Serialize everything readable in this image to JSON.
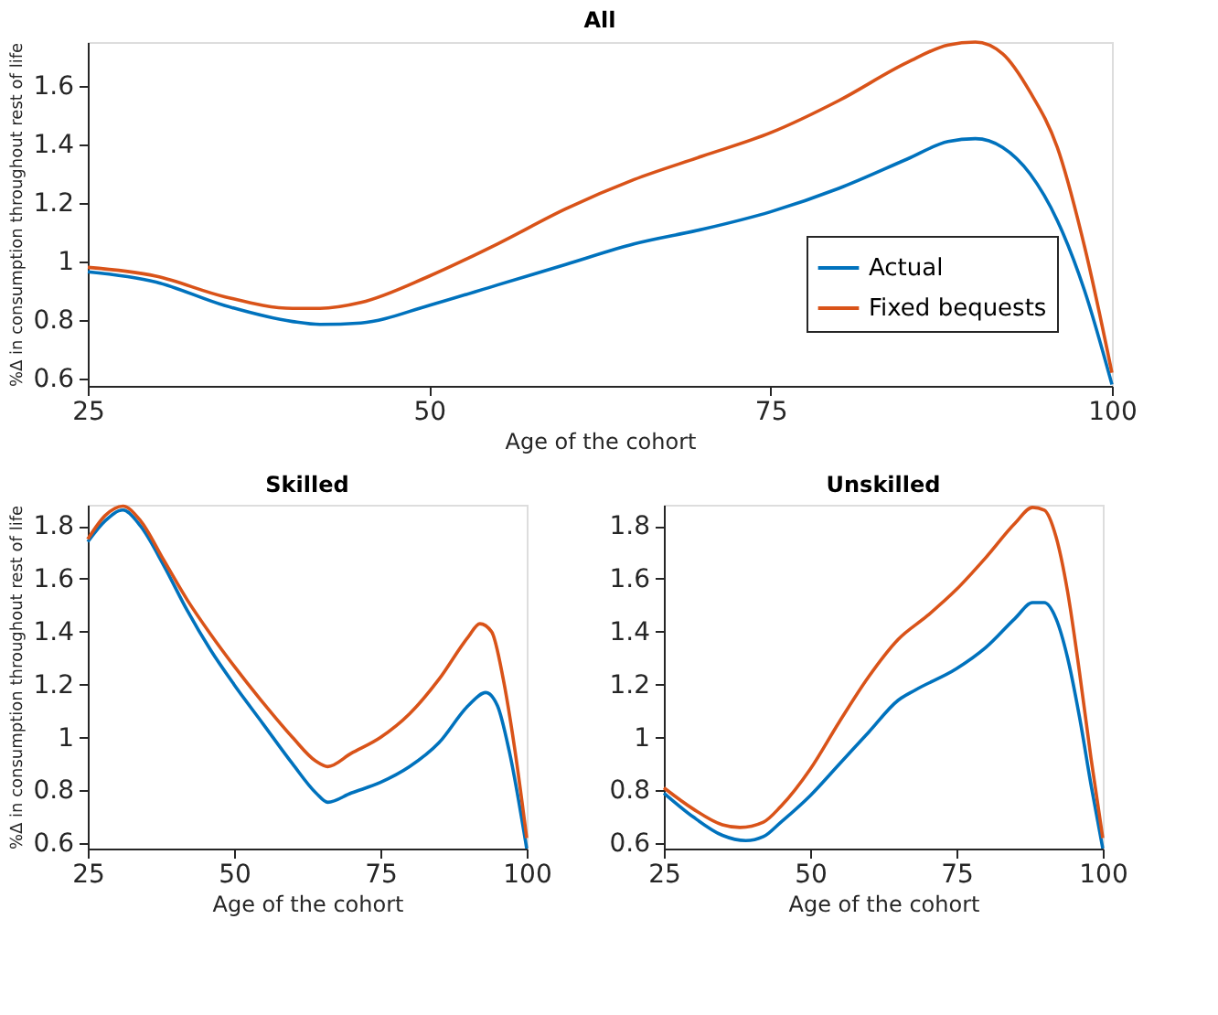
{
  "chart_data": [
    {
      "type": "line",
      "title": "All",
      "xlabel": "Age of the cohort",
      "ylabel": "%Δ in consumption throughout rest of life",
      "legend": "bottom right",
      "grid": false,
      "xlim": [
        25,
        100
      ],
      "xticks": [
        25,
        50,
        75,
        100
      ],
      "ylim": [
        0.575,
        1.75
      ],
      "yticks": [
        0.6,
        0.8,
        1,
        1.2,
        1.4,
        1.6
      ],
      "x": [
        25,
        30,
        35,
        40,
        42,
        45,
        50,
        55,
        60,
        65,
        70,
        75,
        80,
        85,
        88,
        90,
        92,
        94,
        96,
        98,
        100
      ],
      "series": [
        {
          "name": "Actual",
          "color": "#0072bd",
          "values": [
            0.965,
            0.93,
            0.85,
            0.795,
            0.785,
            0.79,
            0.85,
            0.92,
            0.99,
            1.06,
            1.11,
            1.17,
            1.25,
            1.35,
            1.41,
            1.42,
            1.39,
            1.3,
            1.14,
            0.9,
            0.58
          ]
        },
        {
          "name": "Fixed bequests",
          "color": "#d95319",
          "values": [
            0.98,
            0.95,
            0.88,
            0.84,
            0.84,
            0.86,
            0.95,
            1.06,
            1.18,
            1.28,
            1.36,
            1.44,
            1.55,
            1.68,
            1.74,
            1.75,
            1.71,
            1.58,
            1.39,
            1.05,
            0.62
          ]
        }
      ]
    },
    {
      "type": "line",
      "title": "Skilled",
      "xlabel": "Age of the cohort",
      "ylabel": "%Δ in consumption throughout rest of life",
      "grid": false,
      "xlim": [
        25,
        100
      ],
      "xticks": [
        25,
        50,
        75,
        100
      ],
      "ylim": [
        0.58,
        1.88
      ],
      "yticks": [
        0.6,
        0.8,
        1,
        1.2,
        1.4,
        1.6,
        1.8
      ],
      "series": [
        {
          "color": "#0072bd",
          "x": [
            25,
            28,
            31,
            34,
            38,
            42,
            46,
            50,
            55,
            60,
            64,
            66,
            70,
            75,
            80,
            85,
            90,
            93,
            95,
            97,
            100
          ],
          "values": [
            1.74,
            1.82,
            1.86,
            1.8,
            1.65,
            1.48,
            1.33,
            1.2,
            1.05,
            0.9,
            0.79,
            0.755,
            0.79,
            0.83,
            0.89,
            0.98,
            1.12,
            1.17,
            1.12,
            0.95,
            0.58
          ]
        },
        {
          "color": "#d95319",
          "x": [
            25,
            28,
            31,
            34,
            38,
            42,
            46,
            50,
            55,
            60,
            64,
            66,
            70,
            75,
            80,
            85,
            90,
            92,
            94,
            96,
            98,
            100
          ],
          "values": [
            1.75,
            1.84,
            1.875,
            1.82,
            1.67,
            1.52,
            1.39,
            1.27,
            1.13,
            1.0,
            0.91,
            0.89,
            0.94,
            1.0,
            1.09,
            1.22,
            1.38,
            1.43,
            1.4,
            1.22,
            0.95,
            0.62
          ]
        }
      ]
    },
    {
      "type": "line",
      "title": "Unskilled",
      "xlabel": "Age of the cohort",
      "grid": false,
      "xlim": [
        25,
        100
      ],
      "xticks": [
        25,
        50,
        75,
        100
      ],
      "ylim": [
        0.58,
        1.88
      ],
      "yticks": [
        0.6,
        0.8,
        1,
        1.2,
        1.4,
        1.6,
        1.8
      ],
      "series": [
        {
          "color": "#0072bd",
          "x": [
            25,
            30,
            35,
            39,
            42,
            45,
            50,
            55,
            60,
            65,
            68,
            75,
            80,
            85,
            88,
            90,
            92,
            94,
            96,
            98,
            100
          ],
          "values": [
            0.79,
            0.7,
            0.63,
            0.61,
            0.625,
            0.68,
            0.78,
            0.9,
            1.02,
            1.14,
            1.18,
            1.26,
            1.34,
            1.45,
            1.51,
            1.51,
            1.45,
            1.3,
            1.08,
            0.82,
            0.58
          ]
        },
        {
          "color": "#d95319",
          "x": [
            25,
            30,
            35,
            38,
            42,
            45,
            50,
            55,
            60,
            65,
            70,
            75,
            80,
            85,
            88,
            90,
            92,
            94,
            96,
            98,
            100
          ],
          "values": [
            0.81,
            0.73,
            0.67,
            0.66,
            0.68,
            0.74,
            0.88,
            1.06,
            1.23,
            1.37,
            1.46,
            1.56,
            1.68,
            1.81,
            1.87,
            1.86,
            1.76,
            1.55,
            1.25,
            0.92,
            0.62
          ]
        }
      ]
    }
  ]
}
